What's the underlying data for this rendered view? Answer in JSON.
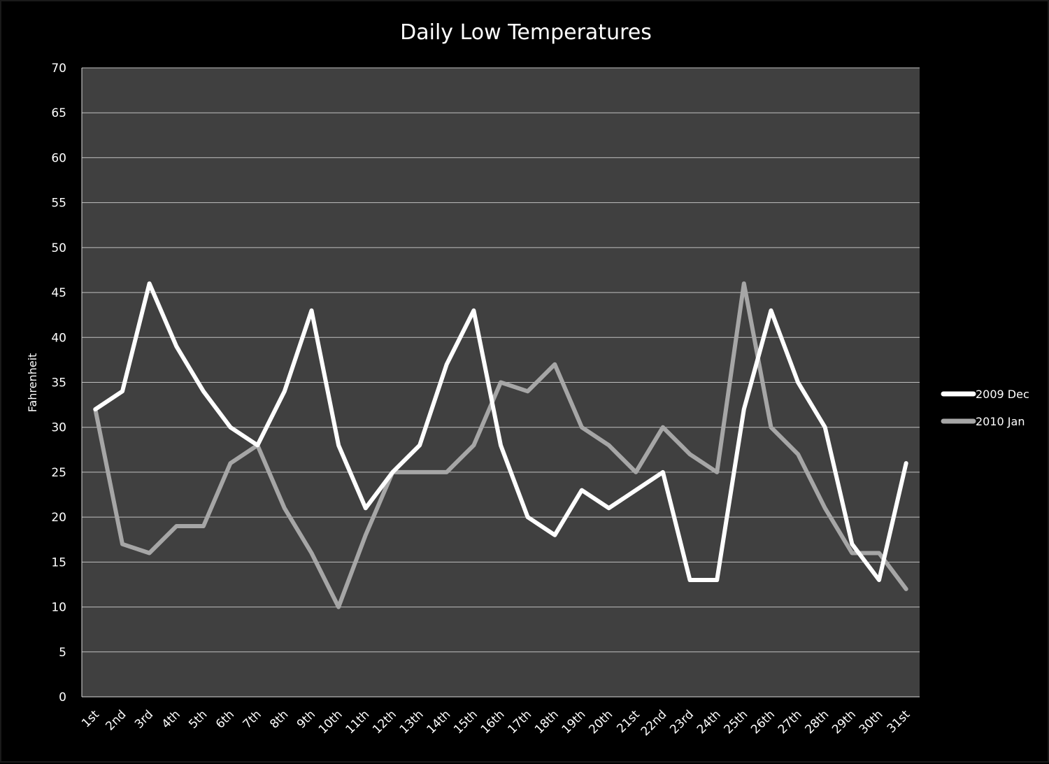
{
  "chart_data": {
    "type": "line",
    "title": "Daily Low Temperatures",
    "xlabel": "",
    "ylabel": "Fahrenheit",
    "ylim": [
      0,
      70
    ],
    "yticks": [
      0,
      5,
      10,
      15,
      20,
      25,
      30,
      35,
      40,
      45,
      50,
      55,
      60,
      65,
      70
    ],
    "grid": true,
    "legend_position": "right",
    "categories": [
      "1st",
      "2nd",
      "3rd",
      "4th",
      "5th",
      "6th",
      "7th",
      "8th",
      "9th",
      "10th",
      "11th",
      "12th",
      "13th",
      "14th",
      "15th",
      "16th",
      "17th",
      "18th",
      "19th",
      "20th",
      "21st",
      "22nd",
      "23rd",
      "24th",
      "25th",
      "26th",
      "27th",
      "28th",
      "29th",
      "30th",
      "31st"
    ],
    "series": [
      {
        "name": "2009 Dec",
        "color": "#ffffff",
        "values": [
          32,
          34,
          46,
          39,
          34,
          30,
          28,
          34,
          43,
          28,
          21,
          25,
          28,
          37,
          43,
          28,
          20,
          18,
          23,
          21,
          23,
          25,
          13,
          13,
          32,
          43,
          35,
          30,
          17,
          13,
          26
        ]
      },
      {
        "name": "2010 Jan",
        "color": "#a6a6a6",
        "values": [
          32,
          17,
          16,
          19,
          19,
          26,
          28,
          21,
          16,
          10,
          18,
          25,
          25,
          25,
          28,
          35,
          34,
          37,
          30,
          28,
          25,
          30,
          27,
          25,
          46,
          30,
          27,
          21,
          16,
          16,
          12
        ]
      }
    ],
    "plot_background": "#404040",
    "gridline_color": "#bfbfbf"
  }
}
